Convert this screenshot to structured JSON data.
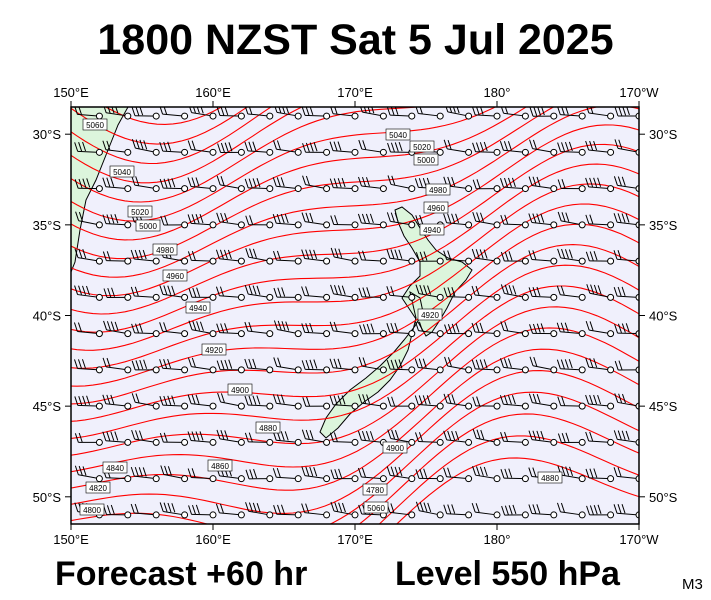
{
  "header": {
    "title": "1800 NZST Sat 5 Jul 2025"
  },
  "footer": {
    "forecast": "Forecast +60 hr",
    "level": "Level 550 hPa",
    "code": "M3"
  },
  "map": {
    "projection": "cylindrical",
    "lon_range": [
      150,
      190
    ],
    "lat_range": [
      -51.5,
      -28.5
    ],
    "lon_ticks": [
      {
        "lon": 150,
        "label": "150°E"
      },
      {
        "lon": 160,
        "label": "160°E"
      },
      {
        "lon": 170,
        "label": "170°E"
      },
      {
        "lon": 180,
        "label": "180°"
      },
      {
        "lon": 190,
        "label": "170°W"
      }
    ],
    "lat_ticks": [
      {
        "lat": -30,
        "label": "30°S"
      },
      {
        "lat": -35,
        "label": "35°S"
      },
      {
        "lat": -40,
        "label": "40°S"
      },
      {
        "lat": -45,
        "label": "45°S"
      },
      {
        "lat": -50,
        "label": "50°S"
      }
    ],
    "colors": {
      "ocean": "#f0f0fc",
      "land": "#dcf5dc",
      "contour": "#ff0000",
      "barb": "#000000"
    },
    "contour_labels": [
      "5060",
      "5040",
      "5020",
      "5000",
      "4980",
      "4960",
      "4940",
      "4920",
      "4900",
      "4880",
      "4860",
      "4840",
      "4820",
      "4800",
      "4780"
    ],
    "features": [
      "New Zealand",
      "Australia east coast"
    ]
  }
}
